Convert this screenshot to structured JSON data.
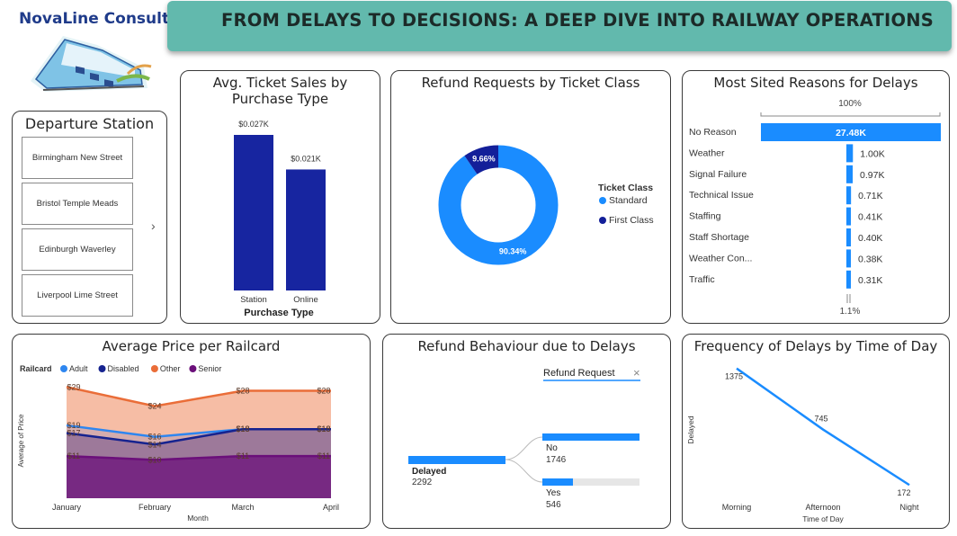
{
  "header": {
    "logo_text": "NovaLine Consult",
    "title": "FROM DELAYS TO DECISIONS: A DEEP DIVE INTO RAILWAY OPERATIONS"
  },
  "departure": {
    "title": "Departure Station",
    "items": [
      "Birmingham New Street",
      "Bristol Temple Meads",
      "Edinburgh Waverley",
      "Liverpool Lime Street"
    ],
    "chevron": "›"
  },
  "ticket_sales": {
    "title_line1": "Avg. Ticket Sales by",
    "title_line2": "Purchase Type",
    "value_labels": [
      "$0.027K",
      "$0.021K"
    ],
    "xlabel": "Purchase Type"
  },
  "refund_class": {
    "title": "Refund Requests by Ticket Class",
    "legend_title": "Ticket Class",
    "slice_labels": [
      "90.34%",
      "9.66%"
    ]
  },
  "delay_reasons": {
    "title": "Most Sited Reasons for Delays",
    "top_label": "100%",
    "bottom_label": "1.1%",
    "value_labels": [
      "27.48K",
      "1.00K",
      "0.97K",
      "0.71K",
      "0.41K",
      "0.40K",
      "0.38K",
      "0.31K"
    ]
  },
  "railcard": {
    "title": "Average Price per Railcard",
    "legend_title": "Railcard",
    "ylabel": "Average of Price",
    "xlabel": "Month",
    "point_labels": {
      "Other": [
        "$29",
        "$24",
        "$28",
        "$28"
      ],
      "Adult": [
        "$19",
        "$16",
        "$18",
        "$18"
      ],
      "Disabled": [
        "$17",
        "$14",
        "$18",
        "$18"
      ],
      "Senior": [
        "$11",
        "$10",
        "$11",
        "$11"
      ]
    }
  },
  "refund_behaviour": {
    "title": "Refund Behaviour due to Delays",
    "filter_label": "Refund Request",
    "close_glyph": "×",
    "root_label": "Delayed",
    "root_value": "2292",
    "branches": [
      {
        "label": "No",
        "value": "1746"
      },
      {
        "label": "Yes",
        "value": "546"
      }
    ]
  },
  "time_of_day": {
    "title": "Frequency of Delays by Time of Day",
    "ylabel": "Delayed",
    "xlabel": "Time of Day",
    "value_labels": [
      "1375",
      "745",
      "172"
    ]
  },
  "colors": {
    "navy_bar": "#1725a0",
    "blue_bar": "#1a8cff",
    "donut_standard": "#1a8cff",
    "donut_first": "#131f99",
    "adult": "#2e86f0",
    "disabled": "#16238f",
    "other": "#ea6d38",
    "senior": "#6b0f7a",
    "header": "#62b9ad"
  },
  "chart_data": [
    {
      "type": "bar",
      "title": "Avg. Ticket Sales by Purchase Type",
      "categories": [
        "Station",
        "Online"
      ],
      "values": [
        0.027,
        0.021
      ],
      "xlabel": "Purchase Type",
      "ylabel": ""
    },
    {
      "type": "pie",
      "title": "Refund Requests by Ticket Class",
      "categories": [
        "Standard",
        "First Class"
      ],
      "values": [
        90.34,
        9.66
      ],
      "legend": "right"
    },
    {
      "type": "bar",
      "title": "Most Sited Reasons for Delays",
      "categories": [
        "No Reason",
        "Weather",
        "Signal Failure",
        "Technical Issue",
        "Staffing",
        "Staff Shortage",
        "Weather Con...",
        "Traffic"
      ],
      "values": [
        27.48,
        1.0,
        0.97,
        0.71,
        0.41,
        0.4,
        0.38,
        0.31
      ]
    },
    {
      "type": "area",
      "title": "Average Price per Railcard",
      "categories": [
        "January",
        "February",
        "March",
        "April"
      ],
      "series": [
        {
          "name": "Other",
          "values": [
            29,
            24,
            28,
            28
          ]
        },
        {
          "name": "Adult",
          "values": [
            19,
            16,
            18,
            18
          ]
        },
        {
          "name": "Disabled",
          "values": [
            17,
            14,
            18,
            18
          ]
        },
        {
          "name": "Senior",
          "values": [
            11,
            10,
            11,
            11
          ]
        }
      ],
      "xlabel": "Month",
      "ylabel": "Average of Price",
      "ylim": [
        0,
        30
      ],
      "legend": "top-left"
    },
    {
      "type": "bar",
      "title": "Refund Behaviour due to Delays",
      "categories": [
        "No",
        "Yes"
      ],
      "values": [
        1746,
        546
      ],
      "total": 2292
    },
    {
      "type": "line",
      "title": "Frequency of Delays by Time of Day",
      "categories": [
        "Morning",
        "Afternoon",
        "Night"
      ],
      "values": [
        1375,
        745,
        172
      ],
      "xlabel": "Time of Day",
      "ylabel": "Delayed"
    }
  ]
}
